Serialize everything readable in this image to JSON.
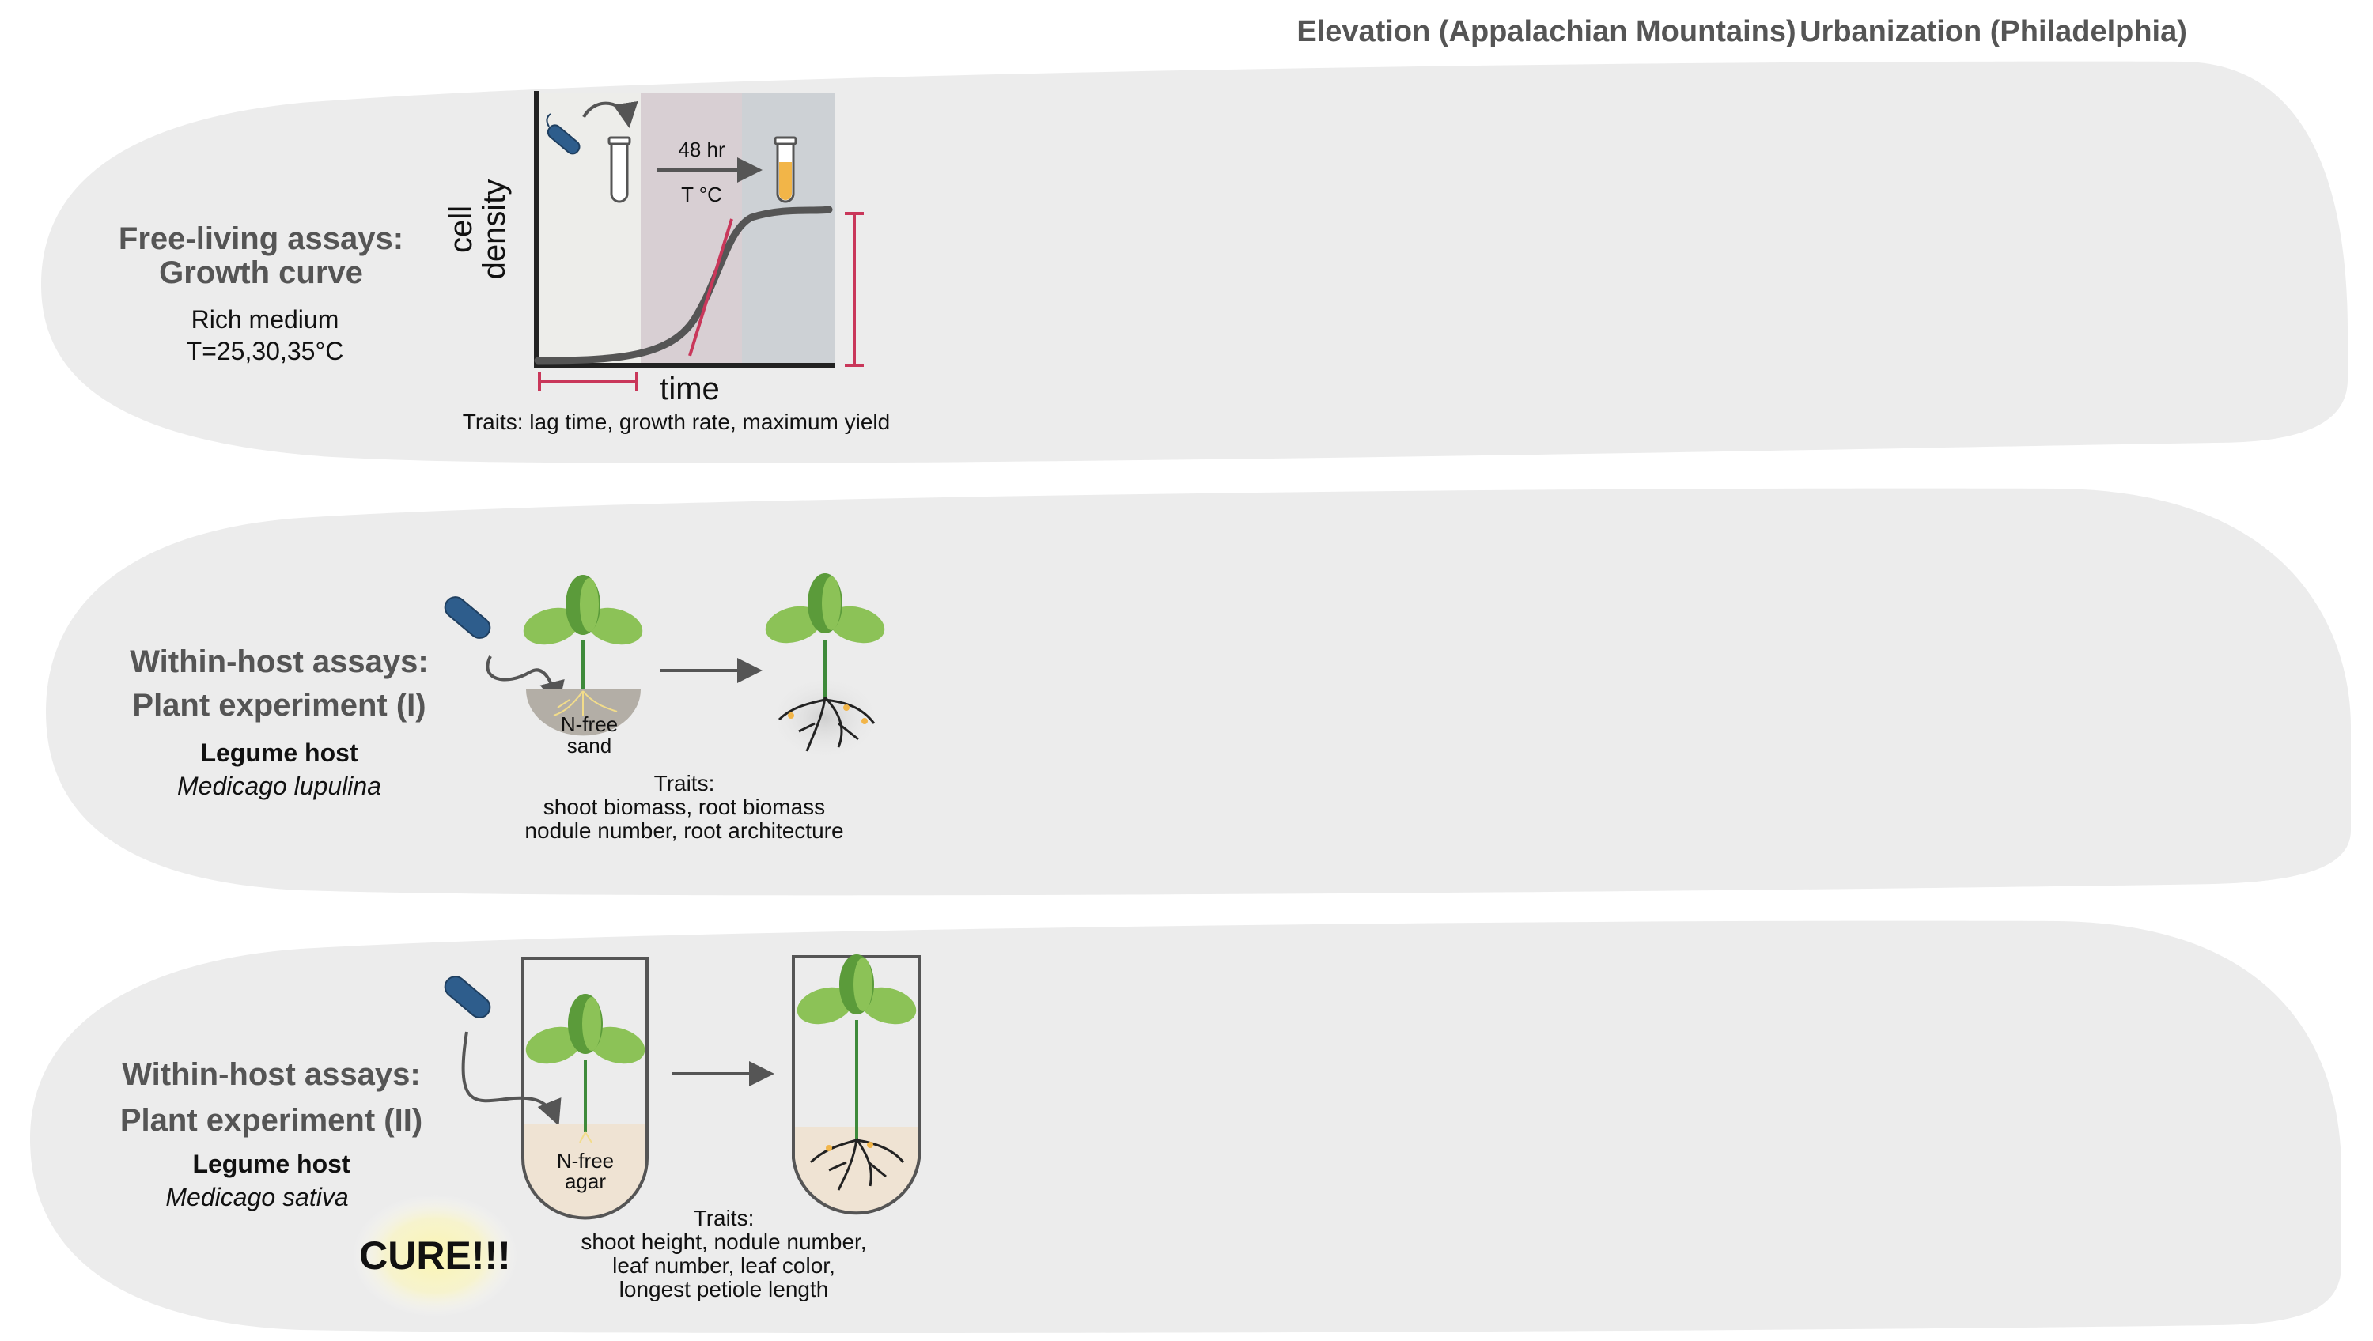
{
  "headers": {
    "elevation": "Elevation (Appalachian Mountains)",
    "urbanization": "Urbanization (Philadelphia)"
  },
  "row1": {
    "title_line1": "Free-living assays:",
    "title_line2": "Growth curve",
    "medium": "Rich medium",
    "temps": "T=25,30,35°C",
    "ylabel_line1": "cell",
    "ylabel_line2": "density",
    "xlabel": "time",
    "incubation_time": "48 hr",
    "incubation_temp": "T °C",
    "traits": "Traits: lag time, growth rate, maximum yield"
  },
  "row2": {
    "title_line1": "Within-host assays:",
    "title_line2": "Plant experiment (I)",
    "host_label": "Legume host",
    "host_species": "Medicago lupulina",
    "substrate_line1": "N-free",
    "substrate_line2": "sand",
    "traits_line1": "Traits:",
    "traits_line2": "shoot biomass, root biomass",
    "traits_line3": "nodule number, root architecture"
  },
  "row3": {
    "title_line1": "Within-host assays:",
    "title_line2": "Plant experiment (II)",
    "host_label": "Legume host",
    "host_species": "Medicago sativa",
    "substrate_line1": "N-free",
    "substrate_line2": "agar",
    "badge": "CURE!!!",
    "traits_line1": "Traits:",
    "traits_line2": "shoot height, nodule number,",
    "traits_line3": "leaf number, leaf color,",
    "traits_line4": "longest petiole length"
  },
  "colors": {
    "panel": "#ececec",
    "leaf_light": "#8cc257",
    "leaf_dark": "#5b9b3a",
    "stem": "#3e8a3a",
    "bacterium": "#2e5d8c",
    "accent_red": "#c9375a",
    "curve": "#555555",
    "culture": "#f2b548",
    "lag_phase": "#ededea",
    "exp_phase": "#d8cfd3",
    "stat_phase": "#cdd1d5"
  }
}
